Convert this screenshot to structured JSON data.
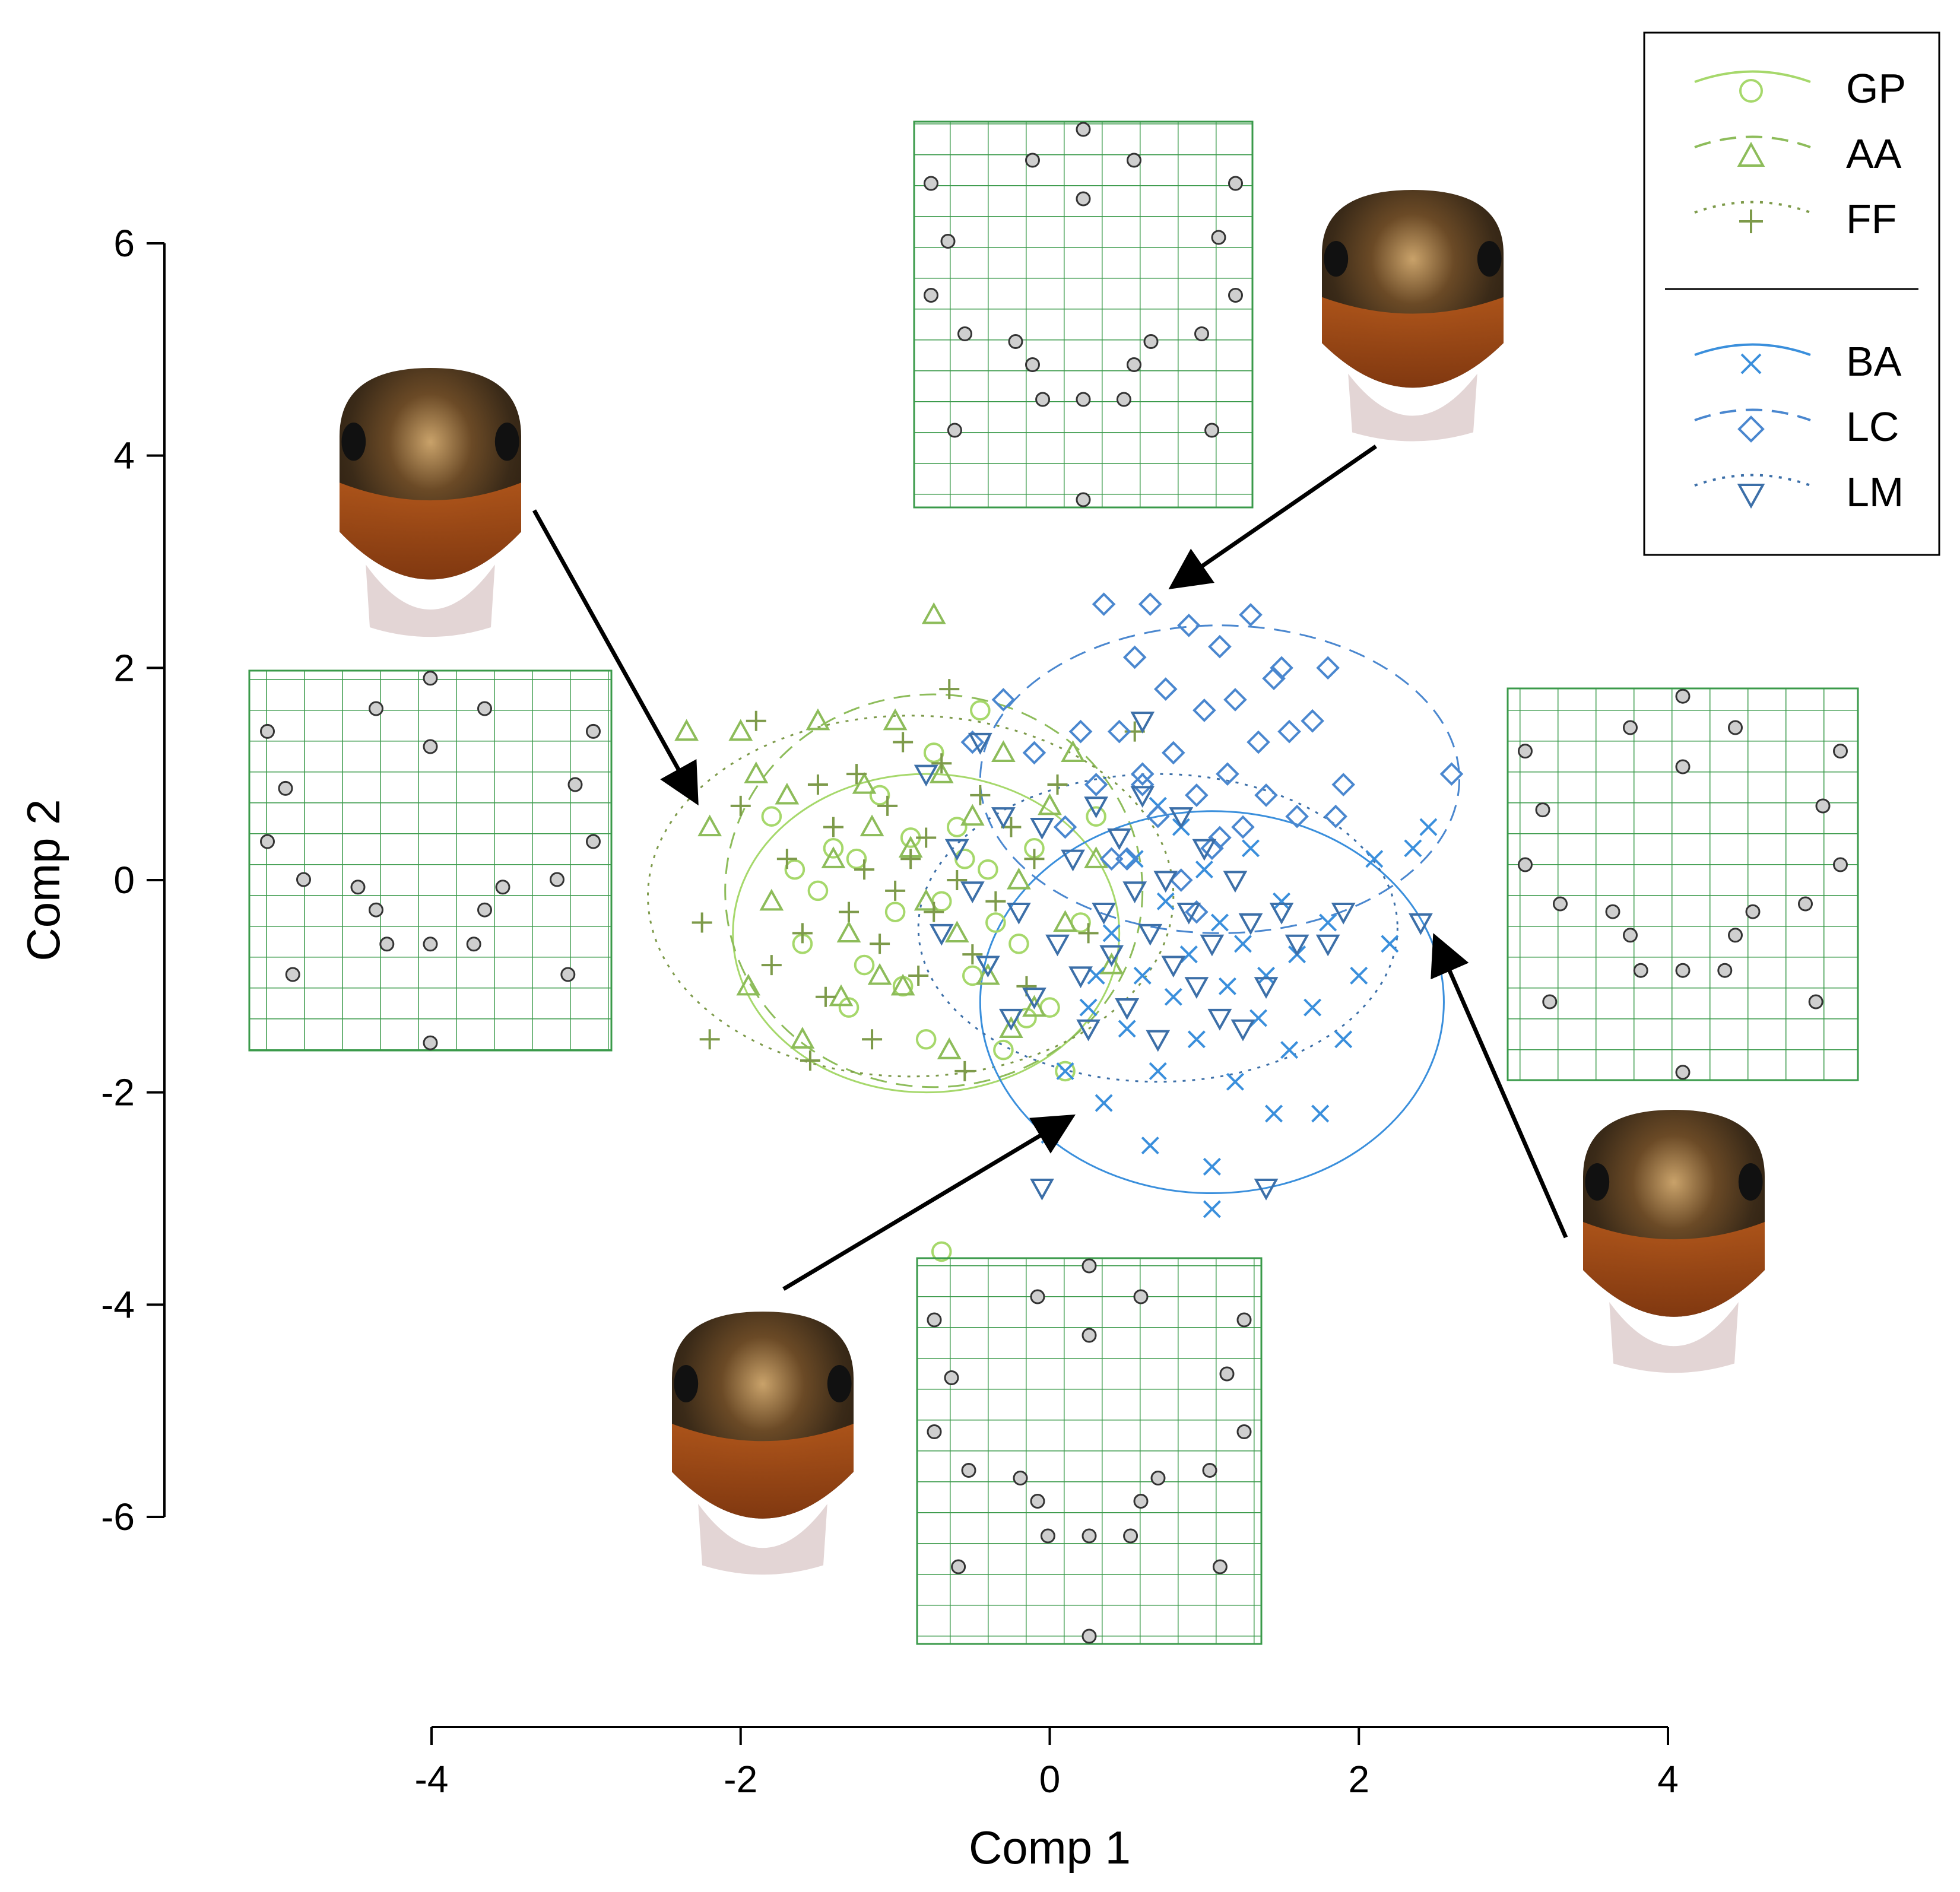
{
  "chart_data": {
    "type": "scatter",
    "xlabel": "Comp 1",
    "ylabel": "Comp 2",
    "xlim": [
      -4,
      4
    ],
    "ylim": [
      -6,
      6
    ],
    "x_ticks": [
      -4,
      -2,
      0,
      2,
      4
    ],
    "y_ticks": [
      -6,
      -4,
      -2,
      0,
      2,
      4,
      6
    ],
    "x_tick_labels": [
      "-4",
      "-2",
      "0",
      "2",
      "4"
    ],
    "y_tick_labels": [
      "-6",
      "-4",
      "-2",
      "0",
      "2",
      "4",
      "6"
    ],
    "legend_position": "top-right",
    "legend_groups": [
      [
        "GP",
        "AA",
        "FF"
      ],
      [
        "BA",
        "LC",
        "LM"
      ]
    ],
    "series": [
      {
        "name": "GP",
        "marker": "circle",
        "color": "#a6d86b",
        "line": "solid",
        "ellipse": {
          "cx": -0.8,
          "cy": -0.5,
          "rx": 1.25,
          "ry": 1.5
        },
        "points": [
          [
            -1.8,
            0.6
          ],
          [
            -1.6,
            -0.6
          ],
          [
            -1.4,
            0.3
          ],
          [
            -1.3,
            -1.2
          ],
          [
            -1.2,
            -0.8
          ],
          [
            -1.1,
            0.8
          ],
          [
            -1.0,
            -0.3
          ],
          [
            -0.9,
            0.4
          ],
          [
            -0.8,
            -1.5
          ],
          [
            -0.7,
            -0.2
          ],
          [
            -0.6,
            0.5
          ],
          [
            -0.5,
            -0.9
          ],
          [
            -0.45,
            1.6
          ],
          [
            -0.4,
            0.1
          ],
          [
            -0.3,
            -1.6
          ],
          [
            -0.2,
            -0.6
          ],
          [
            -0.1,
            0.3
          ],
          [
            0.0,
            -1.2
          ],
          [
            0.1,
            -1.8
          ],
          [
            0.2,
            -0.4
          ],
          [
            0.3,
            0.6
          ],
          [
            -1.5,
            -0.1
          ],
          [
            -1.25,
            0.2
          ],
          [
            -0.95,
            -1.0
          ],
          [
            -0.75,
            1.2
          ],
          [
            -0.55,
            0.2
          ],
          [
            -0.35,
            -0.4
          ],
          [
            -0.15,
            -1.3
          ],
          [
            -1.65,
            0.1
          ],
          [
            -0.7,
            -3.5
          ]
        ]
      },
      {
        "name": "AA",
        "marker": "triangle-up",
        "color": "#8dbc5a",
        "line": "dashed",
        "ellipse": {
          "cx": -0.75,
          "cy": -0.1,
          "rx": 1.35,
          "ry": 1.85
        },
        "points": [
          [
            -2.2,
            0.5
          ],
          [
            -2.0,
            1.4
          ],
          [
            -1.9,
            1.0
          ],
          [
            -1.8,
            -0.2
          ],
          [
            -1.7,
            0.8
          ],
          [
            -1.6,
            -1.5
          ],
          [
            -1.5,
            1.5
          ],
          [
            -1.4,
            0.2
          ],
          [
            -1.3,
            -0.5
          ],
          [
            -1.2,
            0.9
          ],
          [
            -1.1,
            -0.9
          ],
          [
            -1.0,
            1.5
          ],
          [
            -0.95,
            -1.0
          ],
          [
            -0.9,
            0.3
          ],
          [
            -0.8,
            -0.2
          ],
          [
            -0.75,
            2.5
          ],
          [
            -0.7,
            1.0
          ],
          [
            -0.6,
            -0.5
          ],
          [
            -0.5,
            0.6
          ],
          [
            -0.4,
            -0.9
          ],
          [
            -0.3,
            1.2
          ],
          [
            -0.2,
            0.0
          ],
          [
            -0.1,
            -1.2
          ],
          [
            0.0,
            0.7
          ],
          [
            0.1,
            -0.4
          ],
          [
            0.15,
            1.2
          ],
          [
            0.3,
            0.2
          ],
          [
            0.4,
            -0.8
          ],
          [
            -1.35,
            -1.1
          ],
          [
            -0.65,
            -1.6
          ],
          [
            -0.25,
            -1.4
          ],
          [
            -1.95,
            -1.0
          ],
          [
            -2.35,
            1.4
          ],
          [
            -1.15,
            0.5
          ]
        ]
      },
      {
        "name": "FF",
        "marker": "plus",
        "color": "#7d9a4a",
        "line": "dotted",
        "ellipse": {
          "cx": -0.9,
          "cy": -0.15,
          "rx": 1.7,
          "ry": 1.7
        },
        "points": [
          [
            -2.25,
            -0.4
          ],
          [
            -2.2,
            -1.5
          ],
          [
            -2.0,
            0.7
          ],
          [
            -1.9,
            1.5
          ],
          [
            -1.8,
            -0.8
          ],
          [
            -1.7,
            0.2
          ],
          [
            -1.6,
            -0.5
          ],
          [
            -1.5,
            0.9
          ],
          [
            -1.45,
            -1.1
          ],
          [
            -1.4,
            0.5
          ],
          [
            -1.3,
            -0.3
          ],
          [
            -1.25,
            1.0
          ],
          [
            -1.2,
            0.1
          ],
          [
            -1.1,
            -0.6
          ],
          [
            -1.05,
            0.7
          ],
          [
            -1.0,
            -0.1
          ],
          [
            -0.95,
            1.3
          ],
          [
            -0.9,
            0.2
          ],
          [
            -0.85,
            -0.9
          ],
          [
            -0.8,
            0.4
          ],
          [
            -0.75,
            -0.3
          ],
          [
            -0.7,
            1.1
          ],
          [
            -0.65,
            1.8
          ],
          [
            -0.6,
            0.0
          ],
          [
            -0.5,
            -0.7
          ],
          [
            -0.45,
            0.8
          ],
          [
            -0.35,
            -0.2
          ],
          [
            -0.25,
            0.5
          ],
          [
            -0.15,
            -1.0
          ],
          [
            -0.1,
            0.2
          ],
          [
            0.05,
            0.9
          ],
          [
            0.25,
            -0.5
          ],
          [
            0.55,
            1.4
          ],
          [
            -1.55,
            -1.7
          ],
          [
            -0.55,
            -1.8
          ],
          [
            -1.15,
            -1.5
          ]
        ]
      },
      {
        "name": "BA",
        "marker": "x",
        "color": "#3a8fdc",
        "line": "solid",
        "ellipse": {
          "cx": 1.05,
          "cy": -1.15,
          "rx": 1.5,
          "ry": 1.8
        },
        "points": [
          [
            0.0,
            -2.4
          ],
          [
            0.1,
            -1.8
          ],
          [
            0.25,
            -1.2
          ],
          [
            0.35,
            -2.1
          ],
          [
            0.4,
            -0.5
          ],
          [
            0.5,
            -1.4
          ],
          [
            0.55,
            0.2
          ],
          [
            0.6,
            -0.9
          ],
          [
            0.7,
            -1.8
          ],
          [
            0.75,
            -0.2
          ],
          [
            0.8,
            -1.1
          ],
          [
            0.85,
            0.5
          ],
          [
            0.9,
            -0.7
          ],
          [
            0.95,
            -1.5
          ],
          [
            1.0,
            0.1
          ],
          [
            1.05,
            -2.7
          ],
          [
            1.1,
            -0.4
          ],
          [
            1.15,
            -1.0
          ],
          [
            1.2,
            -1.9
          ],
          [
            1.25,
            -0.6
          ],
          [
            1.3,
            0.3
          ],
          [
            1.35,
            -1.3
          ],
          [
            1.4,
            -0.9
          ],
          [
            1.45,
            -2.2
          ],
          [
            1.5,
            -0.2
          ],
          [
            1.55,
            -1.6
          ],
          [
            1.6,
            -0.7
          ],
          [
            1.7,
            -1.2
          ],
          [
            1.8,
            -0.4
          ],
          [
            1.9,
            -1.5
          ],
          [
            2.0,
            -0.9
          ],
          [
            2.1,
            0.2
          ],
          [
            2.2,
            -0.6
          ],
          [
            2.35,
            0.3
          ],
          [
            2.45,
            0.5
          ],
          [
            1.05,
            -3.1
          ],
          [
            0.65,
            -2.5
          ],
          [
            1.75,
            -2.2
          ],
          [
            0.3,
            -0.9
          ],
          [
            0.7,
            0.7
          ]
        ]
      },
      {
        "name": "LC",
        "marker": "diamond",
        "color": "#4a87cf",
        "line": "dashed",
        "ellipse": {
          "cx": 1.1,
          "cy": 0.95,
          "rx": 1.55,
          "ry": 1.45
        },
        "points": [
          [
            -0.5,
            1.3
          ],
          [
            -0.3,
            1.7
          ],
          [
            -0.1,
            1.2
          ],
          [
            0.1,
            0.5
          ],
          [
            0.3,
            0.9
          ],
          [
            0.35,
            2.6
          ],
          [
            0.45,
            1.4
          ],
          [
            0.5,
            0.2
          ],
          [
            0.55,
            2.1
          ],
          [
            0.6,
            1.0
          ],
          [
            0.65,
            2.6
          ],
          [
            0.7,
            0.6
          ],
          [
            0.75,
            1.8
          ],
          [
            0.8,
            1.2
          ],
          [
            0.85,
            0.0
          ],
          [
            0.9,
            2.4
          ],
          [
            0.95,
            0.8
          ],
          [
            1.0,
            1.6
          ],
          [
            1.05,
            0.3
          ],
          [
            1.1,
            2.2
          ],
          [
            1.15,
            1.0
          ],
          [
            1.2,
            1.7
          ],
          [
            1.25,
            0.5
          ],
          [
            1.3,
            2.5
          ],
          [
            1.35,
            1.3
          ],
          [
            1.4,
            0.8
          ],
          [
            1.5,
            2.0
          ],
          [
            1.55,
            1.4
          ],
          [
            1.6,
            0.6
          ],
          [
            1.7,
            1.5
          ],
          [
            1.8,
            2.0
          ],
          [
            1.9,
            0.9
          ],
          [
            1.85,
            0.6
          ],
          [
            2.6,
            1.0
          ],
          [
            0.4,
            0.2
          ],
          [
            0.95,
            -0.3
          ],
          [
            0.2,
            1.4
          ],
          [
            1.45,
            1.9
          ],
          [
            0.6,
            0.9
          ],
          [
            1.1,
            0.4
          ]
        ]
      },
      {
        "name": "LM",
        "marker": "triangle-down",
        "color": "#3c6fa8",
        "line": "dotted",
        "ellipse": {
          "cx": 0.7,
          "cy": -0.45,
          "rx": 1.55,
          "ry": 1.45
        },
        "points": [
          [
            -0.8,
            1.0
          ],
          [
            -0.7,
            -0.5
          ],
          [
            -0.6,
            0.3
          ],
          [
            -0.5,
            -0.1
          ],
          [
            -0.45,
            1.3
          ],
          [
            -0.4,
            -0.8
          ],
          [
            -0.3,
            0.6
          ],
          [
            -0.2,
            -0.3
          ],
          [
            -0.1,
            -1.1
          ],
          [
            -0.05,
            0.5
          ],
          [
            0.05,
            -0.6
          ],
          [
            0.15,
            0.2
          ],
          [
            0.2,
            -0.9
          ],
          [
            0.25,
            -1.4
          ],
          [
            0.3,
            0.7
          ],
          [
            0.35,
            -0.3
          ],
          [
            0.4,
            -0.7
          ],
          [
            0.45,
            0.4
          ],
          [
            0.5,
            -1.2
          ],
          [
            0.55,
            -0.1
          ],
          [
            0.6,
            0.8
          ],
          [
            0.65,
            -0.5
          ],
          [
            0.7,
            -1.5
          ],
          [
            0.75,
            0.0
          ],
          [
            0.8,
            -0.8
          ],
          [
            0.85,
            0.6
          ],
          [
            0.9,
            -0.3
          ],
          [
            0.95,
            -1.0
          ],
          [
            1.0,
            0.3
          ],
          [
            1.05,
            -0.6
          ],
          [
            1.1,
            -1.3
          ],
          [
            1.2,
            0.0
          ],
          [
            1.3,
            -0.4
          ],
          [
            1.4,
            -1.0
          ],
          [
            1.5,
            -0.3
          ],
          [
            1.6,
            -0.6
          ],
          [
            1.8,
            -0.6
          ],
          [
            1.9,
            -0.3
          ],
          [
            2.4,
            -0.4
          ],
          [
            -0.05,
            -2.9
          ],
          [
            1.4,
            -2.9
          ],
          [
            1.25,
            -1.4
          ],
          [
            -0.25,
            -1.3
          ],
          [
            0.6,
            1.5
          ]
        ]
      }
    ],
    "grid": false
  }
}
